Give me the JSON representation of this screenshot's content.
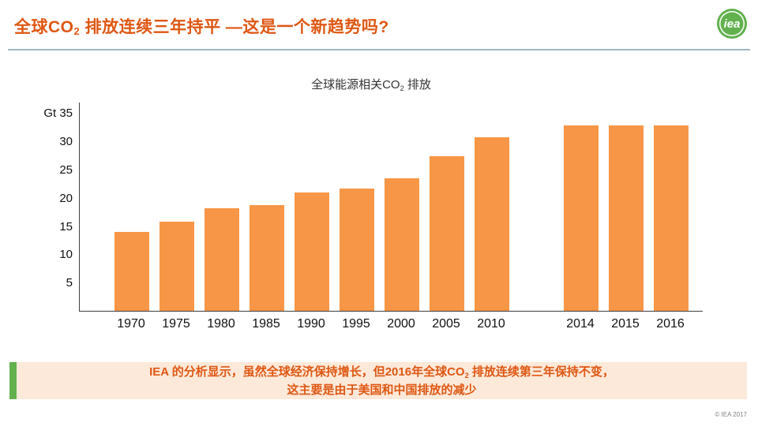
{
  "header": {
    "title": {
      "pre": "全球CO",
      "sub": "2",
      "post": " 排放连续三年持平 —这是一个新趋势吗?"
    },
    "logo_text": "iea"
  },
  "chart_data": {
    "type": "bar",
    "title": {
      "pre": "全球能源相关CO",
      "sub": "2",
      "post": " 排放"
    },
    "ylabel": "Gt",
    "y_unit_prefix": "Gt ",
    "yticks": [
      35,
      30,
      25,
      20,
      15,
      10,
      5
    ],
    "ylim": [
      0,
      37
    ],
    "grid": false,
    "legend": false,
    "groups": [
      {
        "categories": [
          "1970",
          "1975",
          "1980",
          "1985",
          "1990",
          "1995",
          "2000",
          "2005",
          "2010"
        ],
        "values": [
          14.0,
          15.8,
          18.2,
          18.7,
          20.9,
          21.7,
          23.4,
          27.3,
          30.7
        ]
      },
      {
        "categories": [
          "2014",
          "2015",
          "2016"
        ],
        "values": [
          32.8,
          32.8,
          32.8
        ]
      }
    ]
  },
  "footer": {
    "line1": {
      "pre": "IEA 的分析显示，虽然全球经济保持增长，但2016年全球CO",
      "sub": "2",
      "post": " 排放连续第三年保持不变，"
    },
    "line2": "这主要是由于美国和中国排放的减少"
  },
  "copyright": "© IEA 2017",
  "colors": {
    "title": "#DE5713",
    "bar": "#F79646",
    "accent_green": "#62B14E",
    "note_bg": "#FDE9D9",
    "divider": "#9EB6C3"
  }
}
